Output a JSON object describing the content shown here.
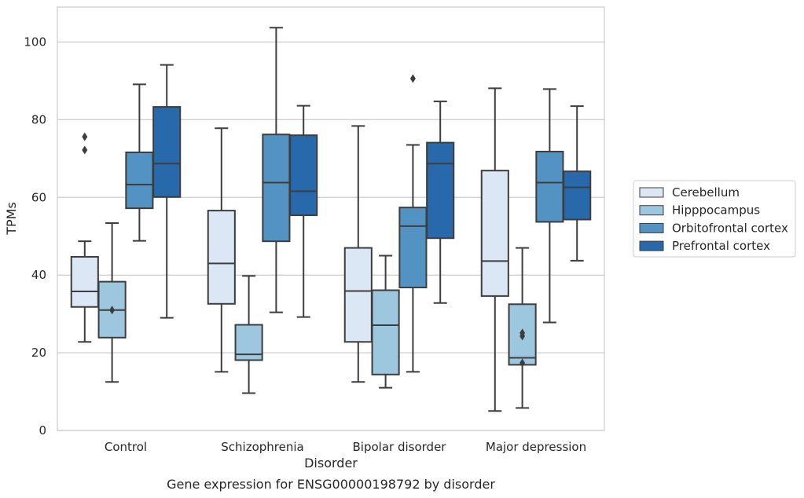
{
  "chart_data": {
    "type": "box",
    "xlabel": "Disorder",
    "ylabel": "TPMs",
    "caption": "Gene expression for ENSG00000198792 by disorder",
    "categories": [
      "Control",
      "Schizophrenia",
      "Bipolar disorder",
      "Major depression"
    ],
    "ylim": [
      0,
      109
    ],
    "yticks": [
      0,
      20,
      40,
      60,
      80,
      100
    ],
    "grid": true,
    "legend_position": "right",
    "series": [
      {
        "name": "Cerebellum",
        "color": "#dbe7f4",
        "boxes": [
          {
            "whisker_low": 22.8,
            "q1": 31.8,
            "median": 35.8,
            "q3": 44.7,
            "whisker_high": 48.7,
            "outliers": [
              72.2,
              75.6
            ]
          },
          {
            "whisker_low": 15.1,
            "q1": 32.6,
            "median": 43.0,
            "q3": 56.6,
            "whisker_high": 77.8,
            "outliers": []
          },
          {
            "whisker_low": 12.5,
            "q1": 22.8,
            "median": 35.9,
            "q3": 47.0,
            "whisker_high": 78.4,
            "outliers": []
          },
          {
            "whisker_low": 5.0,
            "q1": 34.6,
            "median": 43.6,
            "q3": 66.9,
            "whisker_high": 88.1,
            "outliers": []
          }
        ]
      },
      {
        "name": "Hipppocampus",
        "color": "#9dc6df",
        "boxes": [
          {
            "whisker_low": 12.5,
            "q1": 23.9,
            "median": 31.0,
            "q3": 38.3,
            "whisker_high": 53.4,
            "outliers": [
              31.0
            ]
          },
          {
            "whisker_low": 9.6,
            "q1": 18.1,
            "median": 19.6,
            "q3": 27.2,
            "whisker_high": 39.8,
            "outliers": []
          },
          {
            "whisker_low": 11.0,
            "q1": 14.4,
            "median": 27.1,
            "q3": 36.1,
            "whisker_high": 45.0,
            "outliers": []
          },
          {
            "whisker_low": 5.8,
            "q1": 16.9,
            "median": 18.7,
            "q3": 32.5,
            "whisker_high": 47.0,
            "outliers": [
              17.4,
              24.3,
              25.1
            ]
          }
        ]
      },
      {
        "name": "Orbitofrontal cortex",
        "color": "#5393c4",
        "boxes": [
          {
            "whisker_low": 48.8,
            "q1": 57.2,
            "median": 63.3,
            "q3": 71.6,
            "whisker_high": 89.1,
            "outliers": []
          },
          {
            "whisker_low": 30.4,
            "q1": 48.7,
            "median": 63.8,
            "q3": 76.2,
            "whisker_high": 103.7,
            "outliers": []
          },
          {
            "whisker_low": 15.1,
            "q1": 36.8,
            "median": 52.6,
            "q3": 57.4,
            "whisker_high": 73.5,
            "outliers": [
              90.6
            ]
          },
          {
            "whisker_low": 27.8,
            "q1": 53.7,
            "median": 63.8,
            "q3": 71.8,
            "whisker_high": 87.9,
            "outliers": []
          }
        ]
      },
      {
        "name": "Prefrontal cortex",
        "color": "#2769aa",
        "boxes": [
          {
            "whisker_low": 29.0,
            "q1": 60.1,
            "median": 68.7,
            "q3": 83.3,
            "whisker_high": 94.1,
            "outliers": []
          },
          {
            "whisker_low": 29.2,
            "q1": 55.4,
            "median": 61.6,
            "q3": 76.0,
            "whisker_high": 83.6,
            "outliers": []
          },
          {
            "whisker_low": 32.8,
            "q1": 49.5,
            "median": 68.7,
            "q3": 74.1,
            "whisker_high": 84.7,
            "outliers": []
          },
          {
            "whisker_low": 43.7,
            "q1": 54.3,
            "median": 62.6,
            "q3": 66.7,
            "whisker_high": 83.5,
            "outliers": []
          }
        ]
      }
    ]
  }
}
